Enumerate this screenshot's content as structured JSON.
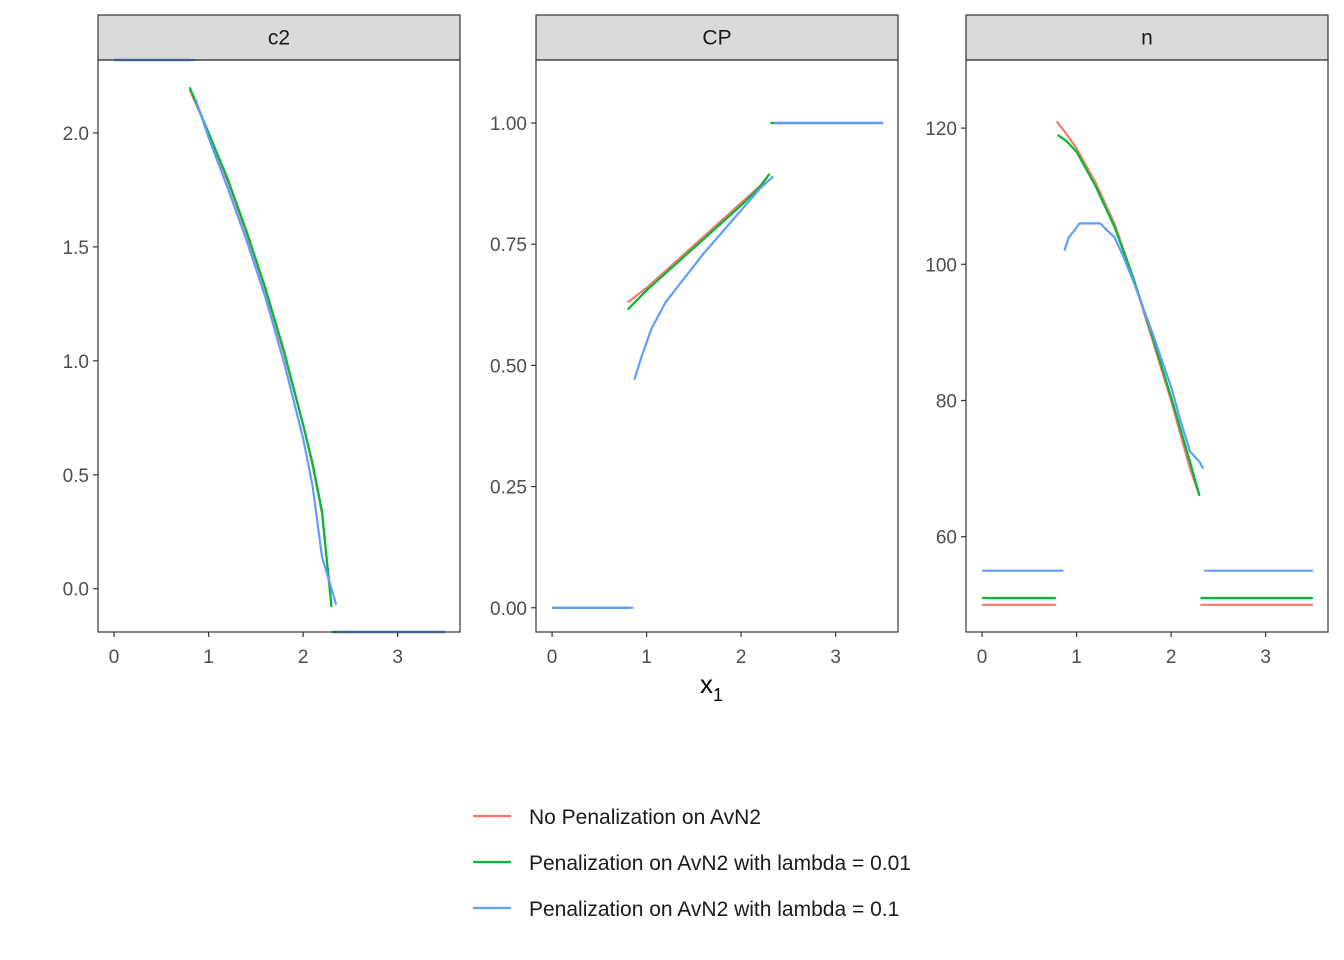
{
  "chart_data": {
    "type": "line",
    "xlabel_main": "x",
    "xlabel_sub": "1",
    "ylabel": "",
    "grid": false,
    "legend_position": "bottom",
    "series_meta": [
      {
        "name": "No Penalization on AvN2",
        "color": "#F8766D"
      },
      {
        "name": "Penalization on AvN2 with lambda = 0.01",
        "color": "#00BA38"
      },
      {
        "name": "Penalization on AvN2 with lambda = 0.1",
        "color": "#619CFF"
      }
    ],
    "panels": [
      {
        "strip": "c2",
        "xlim": [
          -0.17,
          3.66
        ],
        "ylim": [
          -0.19,
          2.32
        ],
        "xticks": [
          0,
          1,
          2,
          3
        ],
        "yticks": [
          0.0,
          0.5,
          1.0,
          1.5,
          2.0
        ],
        "ytick_labels": [
          "0.0",
          "0.5",
          "1.0",
          "1.5",
          "2.0"
        ],
        "series": [
          {
            "segments": [
              [
                [
                  0.0,
                  2.32
                ],
                [
                  0.8,
                  2.32
                ]
              ],
              [
                [
                  0.8,
                  2.19
                ],
                [
                  1.0,
                  2.0
                ],
                [
                  1.2,
                  1.79
                ],
                [
                  1.4,
                  1.56
                ],
                [
                  1.6,
                  1.31
                ],
                [
                  1.8,
                  1.03
                ],
                [
                  2.0,
                  0.72
                ],
                [
                  2.1,
                  0.54
                ],
                [
                  2.2,
                  0.33
                ],
                [
                  2.3,
                  -0.08
                ]
              ],
              [
                [
                  2.31,
                  -0.19
                ],
                [
                  3.5,
                  -0.19
                ]
              ]
            ]
          },
          {
            "segments": [
              [
                [
                  0.0,
                  2.32
                ],
                [
                  0.8,
                  2.32
                ]
              ],
              [
                [
                  0.8,
                  2.2
                ],
                [
                  1.0,
                  2.0
                ],
                [
                  1.2,
                  1.8
                ],
                [
                  1.4,
                  1.57
                ],
                [
                  1.6,
                  1.32
                ],
                [
                  1.8,
                  1.04
                ],
                [
                  2.0,
                  0.72
                ],
                [
                  2.1,
                  0.55
                ],
                [
                  2.2,
                  0.34
                ],
                [
                  2.3,
                  -0.08
                ]
              ],
              [
                [
                  2.31,
                  -0.19
                ],
                [
                  3.5,
                  -0.19
                ]
              ]
            ]
          },
          {
            "segments": [
              [
                [
                  0.0,
                  2.32
                ],
                [
                  0.86,
                  2.32
                ]
              ],
              [
                [
                  0.86,
                  2.15
                ],
                [
                  1.0,
                  1.98
                ],
                [
                  1.2,
                  1.76
                ],
                [
                  1.4,
                  1.53
                ],
                [
                  1.6,
                  1.28
                ],
                [
                  1.8,
                  0.99
                ],
                [
                  2.0,
                  0.66
                ],
                [
                  2.1,
                  0.45
                ],
                [
                  2.2,
                  0.14
                ],
                [
                  2.35,
                  -0.07
                ]
              ],
              [
                [
                  2.36,
                  -0.19
                ],
                [
                  3.5,
                  -0.19
                ]
              ]
            ]
          }
        ]
      },
      {
        "strip": "CP",
        "xlim": [
          -0.17,
          3.66
        ],
        "ylim": [
          -0.05,
          1.13
        ],
        "xticks": [
          0,
          1,
          2,
          3
        ],
        "yticks": [
          0.0,
          0.25,
          0.5,
          0.75,
          1.0
        ],
        "ytick_labels": [
          "0.00",
          "0.25",
          "0.50",
          "0.75",
          "1.00"
        ],
        "series": [
          {
            "segments": [
              [
                [
                  0.0,
                  0.0
                ],
                [
                  0.8,
                  0.0
                ]
              ],
              [
                [
                  0.8,
                  0.63
                ],
                [
                  1.0,
                  0.66
                ],
                [
                  1.2,
                  0.695
                ],
                [
                  1.4,
                  0.73
                ],
                [
                  1.6,
                  0.765
                ],
                [
                  1.8,
                  0.8
                ],
                [
                  2.0,
                  0.835
                ],
                [
                  2.2,
                  0.87
                ],
                [
                  2.3,
                  0.895
                ]
              ],
              [
                [
                  2.31,
                  1.0
                ],
                [
                  3.5,
                  1.0
                ]
              ]
            ]
          },
          {
            "segments": [
              [
                [
                  0.0,
                  0.0
                ],
                [
                  0.8,
                  0.0
                ]
              ],
              [
                [
                  0.8,
                  0.615
                ],
                [
                  1.0,
                  0.655
                ],
                [
                  1.2,
                  0.69
                ],
                [
                  1.4,
                  0.725
                ],
                [
                  1.6,
                  0.76
                ],
                [
                  1.8,
                  0.795
                ],
                [
                  2.0,
                  0.83
                ],
                [
                  2.2,
                  0.868
                ],
                [
                  2.3,
                  0.895
                ]
              ],
              [
                [
                  2.31,
                  1.0
                ],
                [
                  3.5,
                  1.0
                ]
              ]
            ]
          },
          {
            "segments": [
              [
                [
                  0.0,
                  0.0
                ],
                [
                  0.86,
                  0.0
                ]
              ],
              [
                [
                  0.87,
                  0.47
                ],
                [
                  0.95,
                  0.52
                ],
                [
                  1.05,
                  0.575
                ],
                [
                  1.2,
                  0.63
                ],
                [
                  1.4,
                  0.68
                ],
                [
                  1.6,
                  0.73
                ],
                [
                  1.8,
                  0.775
                ],
                [
                  2.0,
                  0.82
                ],
                [
                  2.2,
                  0.865
                ],
                [
                  2.34,
                  0.89
                ]
              ],
              [
                [
                  2.35,
                  1.0
                ],
                [
                  3.5,
                  1.0
                ]
              ]
            ]
          }
        ]
      },
      {
        "strip": "n",
        "xlim": [
          -0.17,
          3.66
        ],
        "ylim": [
          46,
          130
        ],
        "xticks": [
          0,
          1,
          2,
          3
        ],
        "yticks": [
          60,
          80,
          100,
          120
        ],
        "ytick_labels": [
          "60",
          "80",
          "100",
          "120"
        ],
        "series": [
          {
            "segments": [
              [
                [
                  0.0,
                  50
                ],
                [
                  0.78,
                  50
                ]
              ],
              [
                [
                  0.79,
                  121
                ],
                [
                  0.9,
                  119
                ],
                [
                  1.0,
                  117
                ],
                [
                  1.2,
                  112
                ],
                [
                  1.4,
                  106
                ],
                [
                  1.6,
                  98
                ],
                [
                  1.8,
                  89
                ],
                [
                  2.0,
                  80
                ],
                [
                  2.2,
                  70
                ],
                [
                  2.3,
                  66
                ]
              ],
              [
                [
                  2.31,
                  50
                ],
                [
                  3.5,
                  50
                ]
              ]
            ]
          },
          {
            "segments": [
              [
                [
                  0.0,
                  51
                ],
                [
                  0.78,
                  51
                ]
              ],
              [
                [
                  0.8,
                  119
                ],
                [
                  0.9,
                  118
                ],
                [
                  1.0,
                  116.5
                ],
                [
                  1.2,
                  111.5
                ],
                [
                  1.4,
                  105.5
                ],
                [
                  1.6,
                  98
                ],
                [
                  1.8,
                  89.5
                ],
                [
                  2.0,
                  80.5
                ],
                [
                  2.2,
                  71
                ],
                [
                  2.3,
                  66
                ]
              ],
              [
                [
                  2.31,
                  51
                ],
                [
                  3.5,
                  51
                ]
              ]
            ]
          },
          {
            "segments": [
              [
                [
                  0.0,
                  55
                ],
                [
                  0.86,
                  55
                ]
              ],
              [
                [
                  0.87,
                  102
                ],
                [
                  0.92,
                  104
                ],
                [
                  0.98,
                  105
                ],
                [
                  1.03,
                  106
                ],
                [
                  1.25,
                  106
                ],
                [
                  1.32,
                  105
                ],
                [
                  1.4,
                  104
                ],
                [
                  1.5,
                  101
                ],
                [
                  1.6,
                  97.5
                ],
                [
                  1.8,
                  90
                ],
                [
                  2.0,
                  82
                ],
                [
                  2.1,
                  77
                ],
                [
                  2.2,
                  72.5
                ],
                [
                  2.3,
                  71
                ],
                [
                  2.34,
                  70
                ]
              ],
              [
                [
                  2.35,
                  55
                ],
                [
                  3.5,
                  55
                ]
              ]
            ]
          }
        ]
      }
    ]
  }
}
